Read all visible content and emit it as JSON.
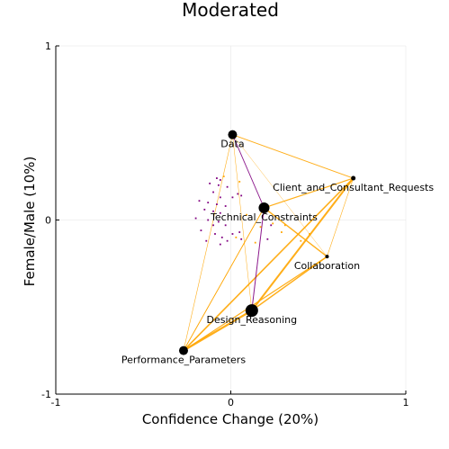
{
  "chart_data": {
    "type": "scatter",
    "title": "Moderated",
    "xlabel": "Confidence Change (20%)",
    "ylabel": "Female/Male (10%)",
    "xlim": [
      -1,
      1
    ],
    "ylim": [
      -1,
      1
    ],
    "xticks": [
      {
        "value": -1,
        "label": "-1"
      },
      {
        "value": 0,
        "label": "0"
      },
      {
        "value": 1,
        "label": "1"
      }
    ],
    "yticks": [
      {
        "value": -1,
        "label": "-1"
      },
      {
        "value": 0,
        "label": "0"
      },
      {
        "value": 1,
        "label": "1"
      }
    ],
    "grid": true,
    "colors": {
      "edge_orange": "#ffa500",
      "edge_purple": "#800080",
      "node": "#000000",
      "scatter": "#800080"
    },
    "nodes": [
      {
        "label": "Data",
        "x": 0.01,
        "y": 0.49,
        "size": 5
      },
      {
        "label": "Client_and_Consultant_Requests",
        "x": 0.7,
        "y": 0.24,
        "size": 2.5
      },
      {
        "label": "Technical_Constraints",
        "x": 0.19,
        "y": 0.07,
        "size": 6
      },
      {
        "label": "Collaboration",
        "x": 0.55,
        "y": -0.21,
        "size": 2
      },
      {
        "label": "Design_Reasoning",
        "x": 0.12,
        "y": -0.52,
        "size": 7
      },
      {
        "label": "Performance_Parameters",
        "x": -0.27,
        "y": -0.75,
        "size": 5
      }
    ],
    "edges": [
      {
        "from": 0,
        "to": 1,
        "weight": 1.0,
        "color": "orange"
      },
      {
        "from": 0,
        "to": 2,
        "weight": 0.9,
        "color": "purple"
      },
      {
        "from": 0,
        "to": 4,
        "weight": 0.5,
        "color": "orange"
      },
      {
        "from": 0,
        "to": 5,
        "weight": 0.6,
        "color": "orange"
      },
      {
        "from": 0,
        "to": 3,
        "weight": 0.4,
        "color": "orange"
      },
      {
        "from": 1,
        "to": 2,
        "weight": 1.2,
        "color": "orange"
      },
      {
        "from": 1,
        "to": 4,
        "weight": 2.0,
        "color": "orange"
      },
      {
        "from": 1,
        "to": 5,
        "weight": 1.6,
        "color": "orange"
      },
      {
        "from": 1,
        "to": 3,
        "weight": 0.6,
        "color": "orange"
      },
      {
        "from": 2,
        "to": 4,
        "weight": 1.0,
        "color": "purple"
      },
      {
        "from": 2,
        "to": 3,
        "weight": 1.4,
        "color": "orange"
      },
      {
        "from": 2,
        "to": 5,
        "weight": 0.8,
        "color": "orange"
      },
      {
        "from": 4,
        "to": 5,
        "weight": 2.2,
        "color": "orange"
      },
      {
        "from": 4,
        "to": 3,
        "weight": 1.4,
        "color": "orange"
      },
      {
        "from": 5,
        "to": 3,
        "weight": 1.2,
        "color": "orange"
      },
      {
        "from": 5,
        "to": 2,
        "weight": 0.8,
        "color": "orange"
      }
    ],
    "scatter_points": [
      {
        "x": -0.08,
        "y": 0.24,
        "color": "purple"
      },
      {
        "x": -0.06,
        "y": 0.23,
        "color": "purple"
      },
      {
        "x": -0.12,
        "y": 0.21,
        "color": "purple"
      },
      {
        "x": -0.07,
        "y": 0.2,
        "color": "purple"
      },
      {
        "x": -0.02,
        "y": 0.19,
        "color": "purple"
      },
      {
        "x": 0.04,
        "y": 0.15,
        "color": "purple"
      },
      {
        "x": 0.01,
        "y": 0.13,
        "color": "purple"
      },
      {
        "x": 0.06,
        "y": 0.14,
        "color": "purple"
      },
      {
        "x": -0.1,
        "y": 0.16,
        "color": "purple"
      },
      {
        "x": -0.06,
        "y": 0.13,
        "color": "purple"
      },
      {
        "x": -0.18,
        "y": 0.11,
        "color": "purple"
      },
      {
        "x": -0.13,
        "y": 0.1,
        "color": "purple"
      },
      {
        "x": -0.08,
        "y": 0.09,
        "color": "purple"
      },
      {
        "x": -0.03,
        "y": 0.08,
        "color": "purple"
      },
      {
        "x": -0.15,
        "y": 0.06,
        "color": "purple"
      },
      {
        "x": -0.1,
        "y": 0.05,
        "color": "purple"
      },
      {
        "x": -0.06,
        "y": 0.04,
        "color": "purple"
      },
      {
        "x": -0.13,
        "y": 0.0,
        "color": "purple"
      },
      {
        "x": -0.2,
        "y": 0.01,
        "color": "purple"
      },
      {
        "x": -0.07,
        "y": -0.01,
        "color": "purple"
      },
      {
        "x": -0.03,
        "y": -0.03,
        "color": "purple"
      },
      {
        "x": -0.1,
        "y": -0.03,
        "color": "purple"
      },
      {
        "x": -0.17,
        "y": -0.06,
        "color": "purple"
      },
      {
        "x": -0.09,
        "y": -0.08,
        "color": "purple"
      },
      {
        "x": -0.05,
        "y": -0.1,
        "color": "purple"
      },
      {
        "x": -0.02,
        "y": -0.12,
        "color": "purple"
      },
      {
        "x": -0.14,
        "y": -0.12,
        "color": "purple"
      },
      {
        "x": 0.01,
        "y": -0.08,
        "color": "purple"
      },
      {
        "x": 0.05,
        "y": -0.07,
        "color": "purple"
      },
      {
        "x": 0.06,
        "y": -0.11,
        "color": "purple"
      },
      {
        "x": -0.06,
        "y": -0.14,
        "color": "purple"
      },
      {
        "x": 0.21,
        "y": -0.11,
        "color": "purple"
      },
      {
        "x": 0.23,
        "y": -0.03,
        "color": "purple"
      },
      {
        "x": 0.24,
        "y": -0.02,
        "color": "orange"
      },
      {
        "x": 0.29,
        "y": -0.07,
        "color": "orange"
      },
      {
        "x": 0.31,
        "y": -0.03,
        "color": "orange"
      },
      {
        "x": 0.14,
        "y": -0.13,
        "color": "orange"
      },
      {
        "x": 0.03,
        "y": -0.1,
        "color": "orange"
      },
      {
        "x": 0.09,
        "y": 0.03,
        "color": "orange"
      },
      {
        "x": 0.17,
        "y": -0.04,
        "color": "orange"
      },
      {
        "x": 0.45,
        "y": -0.08,
        "color": "orange"
      },
      {
        "x": 0.4,
        "y": -0.12,
        "color": "orange"
      },
      {
        "x": -0.04,
        "y": 0.25,
        "color": "orange"
      },
      {
        "x": 0.05,
        "y": 0.22,
        "color": "orange"
      }
    ]
  }
}
